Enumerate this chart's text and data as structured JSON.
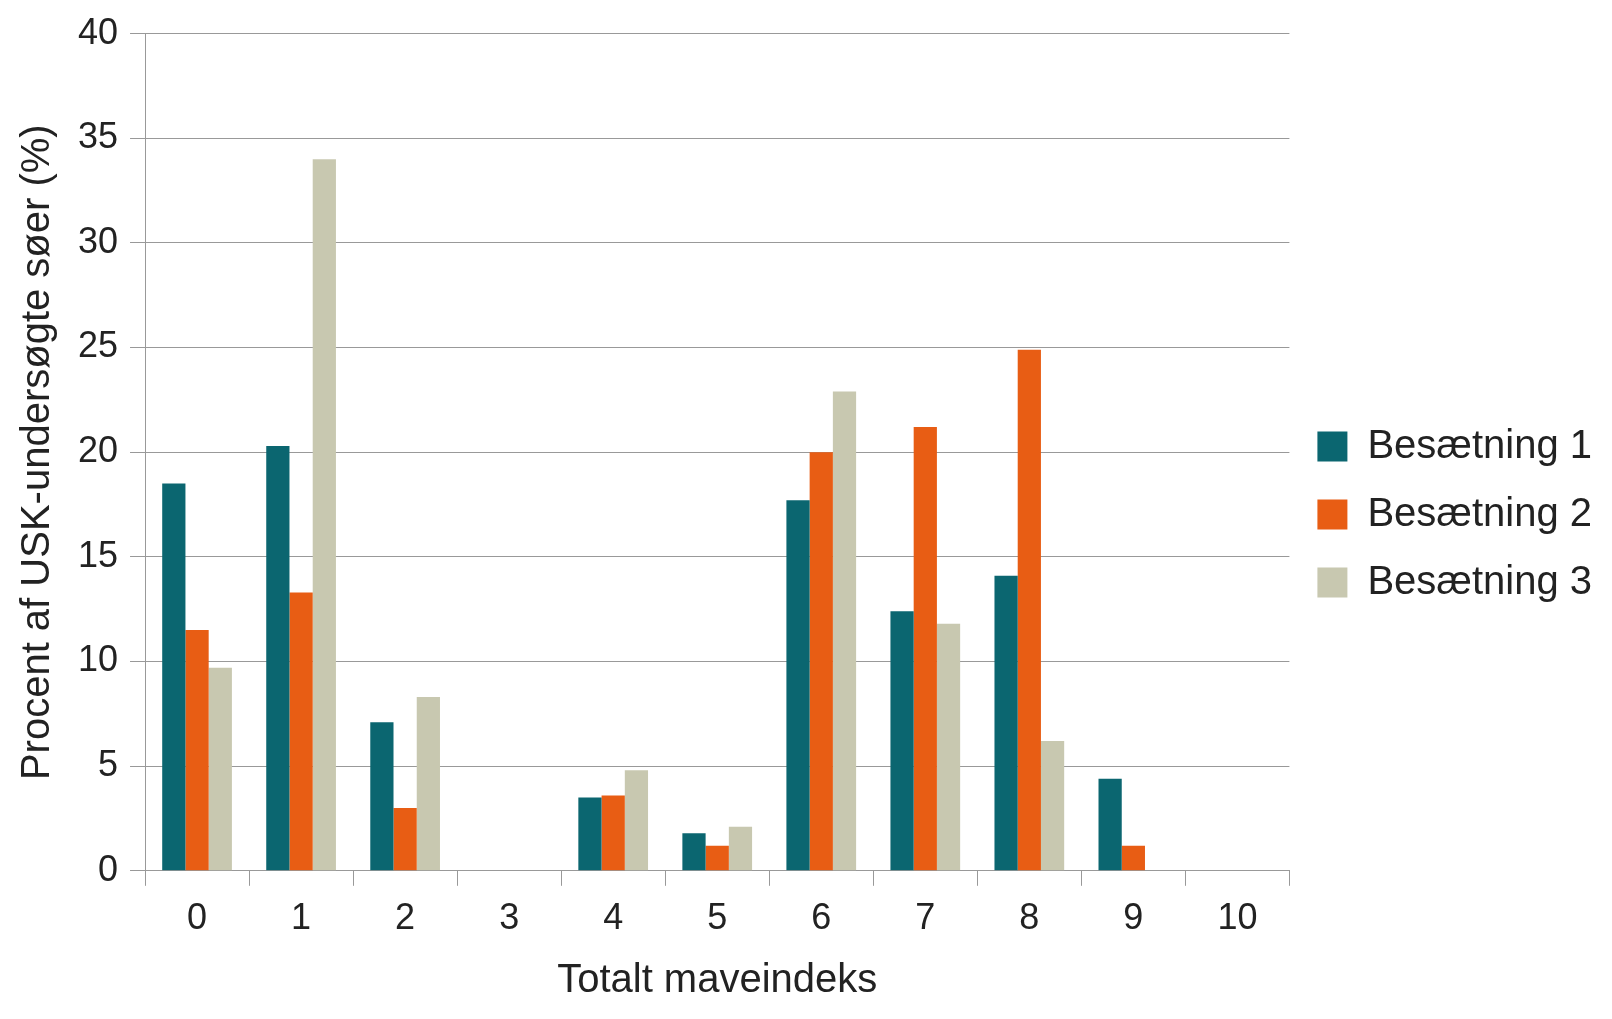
{
  "chart_data": {
    "type": "bar",
    "xlabel": "Totalt maveindeks",
    "ylabel": "Procent af USK-undersøgte søer (%)",
    "categories": [
      "0",
      "1",
      "2",
      "3",
      "4",
      "5",
      "6",
      "7",
      "8",
      "9",
      "10"
    ],
    "series": [
      {
        "name": "Besætning 1",
        "color": "#0b6670",
        "values": [
          18.5,
          20.3,
          7.1,
          0,
          3.5,
          1.8,
          17.7,
          12.4,
          14.1,
          4.4,
          0
        ]
      },
      {
        "name": "Besætning 2",
        "color": "#e85d14",
        "values": [
          11.5,
          13.3,
          3.0,
          0,
          3.6,
          1.2,
          20.0,
          21.2,
          24.9,
          1.2,
          0
        ]
      },
      {
        "name": "Besætning 3",
        "color": "#c8c8b0",
        "values": [
          9.7,
          34.0,
          8.3,
          0,
          4.8,
          2.1,
          22.9,
          11.8,
          6.2,
          0,
          0
        ]
      }
    ],
    "ylim": [
      0,
      40
    ],
    "yticks": [
      0,
      5,
      10,
      15,
      20,
      25,
      30,
      35,
      40
    ],
    "grid": "y",
    "legend": "right"
  }
}
